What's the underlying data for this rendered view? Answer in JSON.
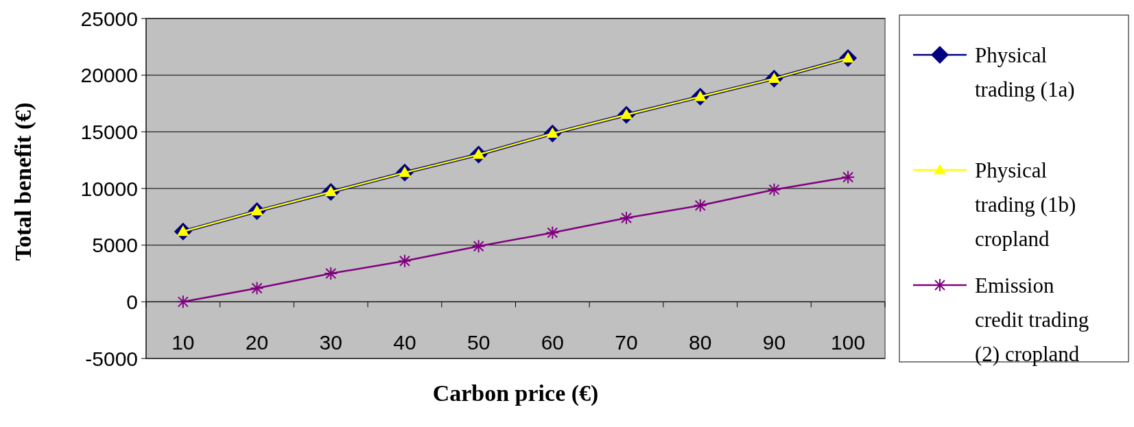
{
  "chart_data": {
    "type": "line",
    "xlabel": "Carbon price (€)",
    "ylabel": "Total benefit (€)",
    "categories": [
      "10",
      "20",
      "30",
      "40",
      "50",
      "60",
      "70",
      "80",
      "90",
      "100"
    ],
    "series": [
      {
        "name": "Physical trading (1a)",
        "color": "#000080",
        "marker": "diamond",
        "values": [
          6200,
          8000,
          9700,
          11400,
          13000,
          14850,
          16500,
          18100,
          19700,
          21500
        ]
      },
      {
        "name": "Physical trading (1b) cropland",
        "color": "#ffff00",
        "marker": "triangle",
        "values": [
          6200,
          8000,
          9700,
          11400,
          13000,
          14850,
          16500,
          18100,
          19700,
          21500
        ]
      },
      {
        "name": "Emission credit trading (2) cropland",
        "color": "#800080",
        "marker": "cross",
        "values": [
          0,
          1200,
          2500,
          3600,
          4900,
          6100,
          7400,
          8500,
          9900,
          11000
        ]
      }
    ],
    "ylim": [
      -5000,
      25000
    ],
    "yticks": [
      -5000,
      0,
      5000,
      10000,
      15000,
      20000,
      25000
    ],
    "grid": "y",
    "legend": "right"
  }
}
